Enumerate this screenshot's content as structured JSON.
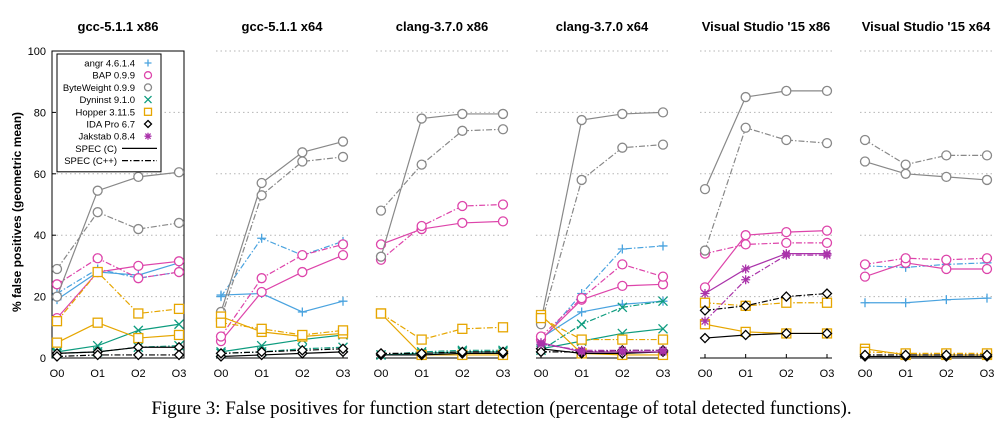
{
  "caption": "Figure 3: False positives for function start detection (percentage of total detected functions).",
  "chart_data": {
    "type": "line",
    "ylabel": "% false positives (geometric mean)",
    "ylim": [
      0,
      100
    ],
    "yticks": [
      0,
      20,
      40,
      60,
      80,
      100
    ],
    "categories": [
      "O0",
      "O1",
      "O2",
      "O3"
    ],
    "grid": "horizontal dotted",
    "legend_placement": "top-left of first panel",
    "tools": [
      {
        "name": "angr 4.6.1.4",
        "color": "#4aa3df",
        "marker": "plus"
      },
      {
        "name": "BAP 0.9.9",
        "color": "#dd44aa",
        "marker": "circle"
      },
      {
        "name": "ByteWeight 0.9.9",
        "color": "#888888",
        "marker": "circle"
      },
      {
        "name": "Dyninst 9.1.0",
        "color": "#0e9c7f",
        "marker": "x"
      },
      {
        "name": "Hopper 3.11.5",
        "color": "#e6a600",
        "marker": "square"
      },
      {
        "name": "IDA Pro 6.7",
        "color": "#000000",
        "marker": "diamond"
      },
      {
        "name": "Jakstab 0.8.4",
        "color": "#aa33aa",
        "marker": "asterisk"
      }
    ],
    "line_styles": [
      {
        "name": "SPEC (C)",
        "dash": "solid"
      },
      {
        "name": "SPEC (C++)",
        "dash": "dashdot"
      }
    ],
    "panels": [
      {
        "title": "gcc-5.1.1 x86",
        "series": [
          {
            "tool": 0,
            "spec": "C",
            "values": [
              19,
              28,
              27,
              31
            ]
          },
          {
            "tool": 0,
            "spec": "C++",
            "values": [
              21,
              29,
              26,
              28
            ]
          },
          {
            "tool": 1,
            "spec": "C",
            "values": [
              13,
              28,
              30,
              31.5
            ]
          },
          {
            "tool": 1,
            "spec": "C++",
            "values": [
              24,
              32.5,
              26,
              28
            ]
          },
          {
            "tool": 2,
            "spec": "C",
            "values": [
              20,
              54.5,
              59,
              60.5
            ]
          },
          {
            "tool": 2,
            "spec": "C++",
            "values": [
              29,
              47.5,
              42,
              44
            ]
          },
          {
            "tool": 3,
            "spec": "C",
            "values": [
              2,
              4,
              9,
              11
            ]
          },
          {
            "tool": 3,
            "spec": "C++",
            "values": [
              1.5,
              2,
              3.5,
              4
            ]
          },
          {
            "tool": 4,
            "spec": "C",
            "values": [
              5,
              11.5,
              6.5,
              7.5
            ]
          },
          {
            "tool": 4,
            "spec": "C++",
            "values": [
              12,
              28,
              14.5,
              16
            ]
          },
          {
            "tool": 5,
            "spec": "C",
            "values": [
              1.5,
              2,
              3.5,
              3.5
            ]
          },
          {
            "tool": 5,
            "spec": "C++",
            "values": [
              0.5,
              1,
              1,
              1
            ]
          }
        ]
      },
      {
        "title": "gcc-5.1.1 x64",
        "series": [
          {
            "tool": 0,
            "spec": "C",
            "values": [
              20.5,
              21,
              15,
              18.5
            ]
          },
          {
            "tool": 0,
            "spec": "C++",
            "values": [
              20,
              39,
              33.5,
              38
            ]
          },
          {
            "tool": 1,
            "spec": "C",
            "values": [
              5.5,
              21.5,
              28,
              33.5
            ]
          },
          {
            "tool": 1,
            "spec": "C++",
            "values": [
              7,
              26,
              33.5,
              37
            ]
          },
          {
            "tool": 2,
            "spec": "C",
            "values": [
              15,
              57,
              67,
              70.5
            ]
          },
          {
            "tool": 2,
            "spec": "C++",
            "values": [
              13,
              53,
              64,
              65.5
            ]
          },
          {
            "tool": 3,
            "spec": "C",
            "values": [
              2,
              4,
              6,
              7.5
            ]
          },
          {
            "tool": 3,
            "spec": "C++",
            "values": [
              1.5,
              2,
              3,
              3.5
            ]
          },
          {
            "tool": 4,
            "spec": "C",
            "values": [
              13.5,
              8.5,
              7,
              8
            ]
          },
          {
            "tool": 4,
            "spec": "C++",
            "values": [
              11.5,
              9.5,
              7.5,
              9
            ]
          },
          {
            "tool": 5,
            "spec": "C",
            "values": [
              0.5,
              1,
              1.5,
              2
            ]
          },
          {
            "tool": 5,
            "spec": "C++",
            "values": [
              1.5,
              2,
              2.5,
              3
            ]
          }
        ]
      },
      {
        "title": "clang-3.7.0 x86",
        "series": [
          {
            "tool": 1,
            "spec": "C",
            "values": [
              37,
              42,
              44,
              44.5
            ]
          },
          {
            "tool": 1,
            "spec": "C++",
            "values": [
              32,
              43,
              49.5,
              50
            ]
          },
          {
            "tool": 2,
            "spec": "C",
            "values": [
              33,
              78,
              79.5,
              79.5
            ]
          },
          {
            "tool": 2,
            "spec": "C++",
            "values": [
              48,
              63,
              74,
              74.5
            ]
          },
          {
            "tool": 3,
            "spec": "C",
            "values": [
              1,
              1.5,
              2,
              2
            ]
          },
          {
            "tool": 3,
            "spec": "C++",
            "values": [
              1,
              2,
              2.5,
              2.5
            ]
          },
          {
            "tool": 4,
            "spec": "C",
            "values": [
              14.5,
              1,
              1,
              1
            ]
          },
          {
            "tool": 4,
            "spec": "C++",
            "values": [
              14.5,
              6,
              9.5,
              10
            ]
          },
          {
            "tool": 5,
            "spec": "C",
            "values": [
              1,
              1,
              1.5,
              1.5
            ]
          },
          {
            "tool": 5,
            "spec": "C++",
            "values": [
              1.5,
              1.5,
              2,
              2
            ]
          }
        ]
      },
      {
        "title": "clang-3.7.0 x64",
        "series": [
          {
            "tool": 0,
            "spec": "C",
            "values": [
              6.5,
              15,
              17.5,
              18.5
            ]
          },
          {
            "tool": 0,
            "spec": "C++",
            "values": [
              5.5,
              21,
              35.5,
              36.5
            ]
          },
          {
            "tool": 1,
            "spec": "C",
            "values": [
              6,
              19,
              23.5,
              24
            ]
          },
          {
            "tool": 1,
            "spec": "C++",
            "values": [
              7,
              19.5,
              30.5,
              26.5
            ]
          },
          {
            "tool": 2,
            "spec": "C",
            "values": [
              12,
              77.5,
              79.5,
              80
            ]
          },
          {
            "tool": 2,
            "spec": "C++",
            "values": [
              11,
              58,
              68.5,
              69.5
            ]
          },
          {
            "tool": 3,
            "spec": "C",
            "values": [
              3,
              5.5,
              8,
              9.5
            ]
          },
          {
            "tool": 3,
            "spec": "C++",
            "values": [
              2.5,
              11,
              16.5,
              18.5
            ]
          },
          {
            "tool": 4,
            "spec": "C",
            "values": [
              14,
              1.5,
              1,
              1
            ]
          },
          {
            "tool": 4,
            "spec": "C++",
            "values": [
              13,
              6,
              6,
              6
            ]
          },
          {
            "tool": 5,
            "spec": "C",
            "values": [
              3,
              1.5,
              1.5,
              2
            ]
          },
          {
            "tool": 5,
            "spec": "C++",
            "values": [
              2,
              2,
              2.5,
              2.5
            ]
          },
          {
            "tool": 6,
            "spec": "C",
            "values": [
              5,
              2,
              2,
              2
            ]
          },
          {
            "tool": 6,
            "spec": "C++",
            "values": [
              4.5,
              2.5,
              2.5,
              2.5
            ]
          }
        ]
      },
      {
        "title": "Visual Studio '15 x86",
        "series": [
          {
            "tool": 1,
            "spec": "C",
            "values": [
              23,
              40,
              41,
              41.5
            ]
          },
          {
            "tool": 1,
            "spec": "C++",
            "values": [
              34,
              37,
              37.5,
              37.5
            ]
          },
          {
            "tool": 2,
            "spec": "C",
            "values": [
              55,
              85,
              87,
              87
            ]
          },
          {
            "tool": 2,
            "spec": "C++",
            "values": [
              35,
              75,
              71,
              70
            ]
          },
          {
            "tool": 4,
            "spec": "C",
            "values": [
              11,
              8.5,
              8,
              8
            ]
          },
          {
            "tool": 4,
            "spec": "C++",
            "values": [
              18,
              17,
              18,
              18
            ]
          },
          {
            "tool": 5,
            "spec": "C",
            "values": [
              6.5,
              7.5,
              8,
              8
            ]
          },
          {
            "tool": 5,
            "spec": "C++",
            "values": [
              15.5,
              17,
              20,
              21
            ]
          },
          {
            "tool": 6,
            "spec": "C",
            "values": [
              21,
              29,
              34,
              34
            ]
          },
          {
            "tool": 6,
            "spec": "C++",
            "values": [
              12,
              25.5,
              33.5,
              33.5
            ]
          }
        ]
      },
      {
        "title": "Visual Studio '15 x64",
        "series": [
          {
            "tool": 0,
            "spec": "C",
            "values": [
              18,
              18,
              19,
              19.5
            ]
          },
          {
            "tool": 0,
            "spec": "C++",
            "values": [
              30,
              29.5,
              30.5,
              31
            ]
          },
          {
            "tool": 1,
            "spec": "C",
            "values": [
              26.5,
              31,
              29,
              29
            ]
          },
          {
            "tool": 1,
            "spec": "C++",
            "values": [
              30.5,
              32.5,
              32,
              32.5
            ]
          },
          {
            "tool": 2,
            "spec": "C",
            "values": [
              64,
              60,
              59,
              58
            ]
          },
          {
            "tool": 2,
            "spec": "C++",
            "values": [
              71,
              63,
              66,
              66
            ]
          },
          {
            "tool": 4,
            "spec": "C",
            "values": [
              3,
              1,
              1,
              1
            ]
          },
          {
            "tool": 4,
            "spec": "C++",
            "values": [
              2,
              1.5,
              1.5,
              1.5
            ]
          },
          {
            "tool": 5,
            "spec": "C",
            "values": [
              0.5,
              0.5,
              0.5,
              0.5
            ]
          },
          {
            "tool": 5,
            "spec": "C++",
            "values": [
              1,
              1,
              1,
              1
            ]
          }
        ]
      }
    ]
  }
}
